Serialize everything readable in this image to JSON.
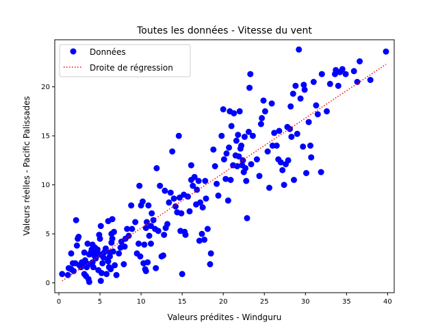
{
  "chart_data": {
    "type": "scatter",
    "title": "Toutes les données - Vitesse du vent",
    "xlabel": "Valeurs prédites - Windguru",
    "ylabel": "Valeurs réelles - Pacific Palissades",
    "xlim": [
      -0.5,
      40.8
    ],
    "ylim": [
      -1.0,
      24.8
    ],
    "xticks": [
      0,
      5,
      10,
      15,
      20,
      25,
      30,
      35,
      40
    ],
    "yticks": [
      0,
      5,
      10,
      15,
      20
    ],
    "grid": false,
    "legend_position": "top-left",
    "series": [
      {
        "name": "Données",
        "kind": "scatter",
        "color": "#0000ff",
        "points": [
          [
            0.4,
            0.9
          ],
          [
            1.1,
            0.8
          ],
          [
            1.2,
            1.5
          ],
          [
            1.5,
            1.4
          ],
          [
            1.5,
            3.0
          ],
          [
            1.7,
            2.0
          ],
          [
            1.8,
            1.2
          ],
          [
            2.0,
            2.0
          ],
          [
            2.1,
            6.4
          ],
          [
            2.2,
            3.8
          ],
          [
            2.3,
            4.5
          ],
          [
            2.4,
            4.7
          ],
          [
            2.5,
            1.8
          ],
          [
            2.7,
            1.6
          ],
          [
            2.8,
            2.1
          ],
          [
            3.0,
            2.0
          ],
          [
            3.1,
            0.9
          ],
          [
            3.1,
            3.1
          ],
          [
            3.2,
            2.3
          ],
          [
            3.3,
            0.7
          ],
          [
            3.4,
            1.6
          ],
          [
            3.5,
            4.0
          ],
          [
            3.6,
            0.4
          ],
          [
            3.6,
            1.9
          ],
          [
            3.7,
            0.1
          ],
          [
            3.7,
            2.9
          ],
          [
            3.9,
            3.1
          ],
          [
            4.0,
            3.4
          ],
          [
            4.1,
            2.1
          ],
          [
            4.1,
            3.9
          ],
          [
            4.2,
            1.6
          ],
          [
            4.3,
            2.8
          ],
          [
            4.4,
            3.6
          ],
          [
            4.5,
            2.5
          ],
          [
            4.6,
            3.2
          ],
          [
            4.7,
            3.4
          ],
          [
            4.8,
            1.3
          ],
          [
            4.9,
            4.9
          ],
          [
            5.0,
            4.5
          ],
          [
            5.0,
            2.9
          ],
          [
            5.1,
            5.8
          ],
          [
            5.1,
            0.2
          ],
          [
            5.2,
            1.0
          ],
          [
            5.3,
            2.0
          ],
          [
            5.4,
            2.6
          ],
          [
            5.5,
            3.1
          ],
          [
            5.7,
            3.5
          ],
          [
            5.8,
            0.9
          ],
          [
            5.9,
            2.4
          ],
          [
            6.0,
            6.3
          ],
          [
            6.0,
            2.2
          ],
          [
            6.1,
            1.6
          ],
          [
            6.2,
            3.1
          ],
          [
            6.2,
            2.7
          ],
          [
            6.3,
            1.4
          ],
          [
            6.4,
            4.1
          ],
          [
            6.4,
            5.0
          ],
          [
            6.5,
            6.5
          ],
          [
            6.5,
            4.5
          ],
          [
            6.6,
            3.2
          ],
          [
            6.7,
            5.2
          ],
          [
            6.8,
            1.8
          ],
          [
            7.0,
            0.8
          ],
          [
            7.3,
            3.0
          ],
          [
            7.5,
            3.6
          ],
          [
            7.6,
            4.2
          ],
          [
            7.9,
            1.9
          ],
          [
            8.0,
            3.7
          ],
          [
            8.1,
            4.5
          ],
          [
            8.3,
            5.5
          ],
          [
            8.5,
            4.8
          ],
          [
            8.8,
            7.9
          ],
          [
            8.9,
            5.5
          ],
          [
            9.3,
            6.2
          ],
          [
            9.5,
            3.0
          ],
          [
            9.7,
            4.0
          ],
          [
            9.8,
            9.9
          ],
          [
            9.9,
            2.7
          ],
          [
            10.0,
            7.9
          ],
          [
            10.2,
            8.3
          ],
          [
            10.3,
            2.0
          ],
          [
            10.4,
            3.9
          ],
          [
            10.5,
            1.4
          ],
          [
            10.6,
            1.2
          ],
          [
            10.6,
            5.6
          ],
          [
            10.7,
            6.2
          ],
          [
            10.8,
            2.1
          ],
          [
            10.9,
            7.9
          ],
          [
            11.0,
            4.8
          ],
          [
            11.2,
            4.0
          ],
          [
            11.2,
            5.8
          ],
          [
            11.3,
            7.1
          ],
          [
            11.5,
            6.4
          ],
          [
            11.7,
            5.5
          ],
          [
            11.8,
            1.5
          ],
          [
            11.9,
            11.7
          ],
          [
            12.1,
            5.3
          ],
          [
            12.3,
            9.9
          ],
          [
            12.5,
            2.7
          ],
          [
            12.7,
            2.8
          ],
          [
            12.8,
            4.9
          ],
          [
            12.9,
            9.4
          ],
          [
            13.0,
            5.6
          ],
          [
            13.2,
            6.0
          ],
          [
            13.4,
            8.2
          ],
          [
            13.6,
            9.2
          ],
          [
            13.8,
            13.4
          ],
          [
            14.0,
            8.6
          ],
          [
            14.2,
            7.8
          ],
          [
            14.4,
            7.2
          ],
          [
            14.6,
            15.0
          ],
          [
            14.7,
            8.7
          ],
          [
            14.8,
            5.3
          ],
          [
            14.9,
            7.1
          ],
          [
            15.0,
            0.9
          ],
          [
            15.2,
            9.0
          ],
          [
            15.3,
            5.2
          ],
          [
            15.4,
            4.9
          ],
          [
            15.7,
            8.8
          ],
          [
            15.9,
            7.3
          ],
          [
            16.1,
            12.0
          ],
          [
            16.1,
            10.5
          ],
          [
            16.3,
            9.9
          ],
          [
            16.5,
            10.8
          ],
          [
            16.7,
            8.0
          ],
          [
            16.8,
            9.5
          ],
          [
            17.0,
            10.4
          ],
          [
            17.1,
            4.3
          ],
          [
            17.2,
            8.2
          ],
          [
            17.4,
            5.0
          ],
          [
            17.5,
            7.7
          ],
          [
            17.7,
            4.4
          ],
          [
            17.8,
            10.4
          ],
          [
            17.9,
            8.6
          ],
          [
            18.1,
            5.5
          ],
          [
            18.4,
            1.9
          ],
          [
            18.5,
            3.0
          ],
          [
            18.8,
            13.6
          ],
          [
            19.0,
            11.9
          ],
          [
            19.2,
            10.1
          ],
          [
            19.4,
            8.9
          ],
          [
            19.8,
            15.0
          ],
          [
            20.0,
            17.7
          ],
          [
            20.1,
            12.6
          ],
          [
            20.3,
            10.6
          ],
          [
            20.4,
            13.2
          ],
          [
            20.6,
            8.4
          ],
          [
            20.7,
            13.8
          ],
          [
            20.8,
            17.5
          ],
          [
            20.9,
            10.5
          ],
          [
            21.0,
            16.0
          ],
          [
            21.2,
            12.0
          ],
          [
            21.3,
            17.3
          ],
          [
            21.5,
            13.0
          ],
          [
            21.6,
            14.5
          ],
          [
            21.7,
            11.9
          ],
          [
            21.8,
            15.1
          ],
          [
            21.9,
            12.9
          ],
          [
            22.0,
            17.5
          ],
          [
            22.1,
            13.7
          ],
          [
            22.2,
            14.0
          ],
          [
            22.3,
            12.0
          ],
          [
            22.4,
            12.5
          ],
          [
            22.5,
            11.3
          ],
          [
            22.6,
            14.9
          ],
          [
            22.7,
            11.7
          ],
          [
            22.8,
            10.4
          ],
          [
            22.9,
            6.6
          ],
          [
            23.1,
            15.4
          ],
          [
            23.2,
            19.9
          ],
          [
            23.3,
            21.3
          ],
          [
            23.4,
            12.1
          ],
          [
            23.6,
            15.0
          ],
          [
            24.1,
            12.6
          ],
          [
            24.4,
            10.9
          ],
          [
            24.6,
            16.2
          ],
          [
            24.7,
            16.8
          ],
          [
            24.9,
            18.6
          ],
          [
            25.1,
            17.5
          ],
          [
            25.4,
            13.4
          ],
          [
            25.6,
            9.7
          ],
          [
            25.9,
            18.3
          ],
          [
            26.0,
            14.0
          ],
          [
            26.2,
            15.3
          ],
          [
            26.5,
            14.0
          ],
          [
            26.7,
            12.6
          ],
          [
            26.8,
            15.5
          ],
          [
            27.0,
            12.3
          ],
          [
            27.2,
            11.5
          ],
          [
            27.4,
            10.0
          ],
          [
            27.6,
            12.1
          ],
          [
            27.8,
            15.9
          ],
          [
            27.9,
            12.5
          ],
          [
            28.1,
            15.7
          ],
          [
            28.2,
            18.0
          ],
          [
            28.3,
            14.9
          ],
          [
            28.5,
            19.3
          ],
          [
            28.6,
            10.5
          ],
          [
            28.8,
            20.1
          ],
          [
            29.0,
            15.2
          ],
          [
            29.2,
            23.8
          ],
          [
            29.4,
            18.8
          ],
          [
            29.7,
            13.9
          ],
          [
            29.8,
            20.2
          ],
          [
            29.9,
            19.7
          ],
          [
            30.1,
            11.2
          ],
          [
            30.4,
            16.4
          ],
          [
            30.6,
            14.0
          ],
          [
            30.7,
            12.8
          ],
          [
            31.0,
            20.5
          ],
          [
            31.3,
            18.1
          ],
          [
            31.5,
            17.2
          ],
          [
            31.9,
            11.3
          ],
          [
            32.0,
            21.3
          ],
          [
            32.6,
            17.5
          ],
          [
            33.0,
            20.3
          ],
          [
            33.6,
            21.3
          ],
          [
            33.7,
            21.7
          ],
          [
            34.0,
            20.1
          ],
          [
            34.2,
            21.5
          ],
          [
            34.5,
            21.8
          ],
          [
            34.9,
            21.3
          ],
          [
            35.9,
            21.6
          ],
          [
            36.3,
            20.5
          ],
          [
            36.6,
            22.6
          ],
          [
            37.9,
            20.7
          ],
          [
            39.8,
            23.6
          ]
        ]
      },
      {
        "name": "Droite de régression",
        "kind": "line",
        "style": "dotted",
        "color": "#ff0000",
        "x": [
          0.4,
          39.8
        ],
        "y": [
          0.2,
          22.3
        ]
      }
    ]
  }
}
